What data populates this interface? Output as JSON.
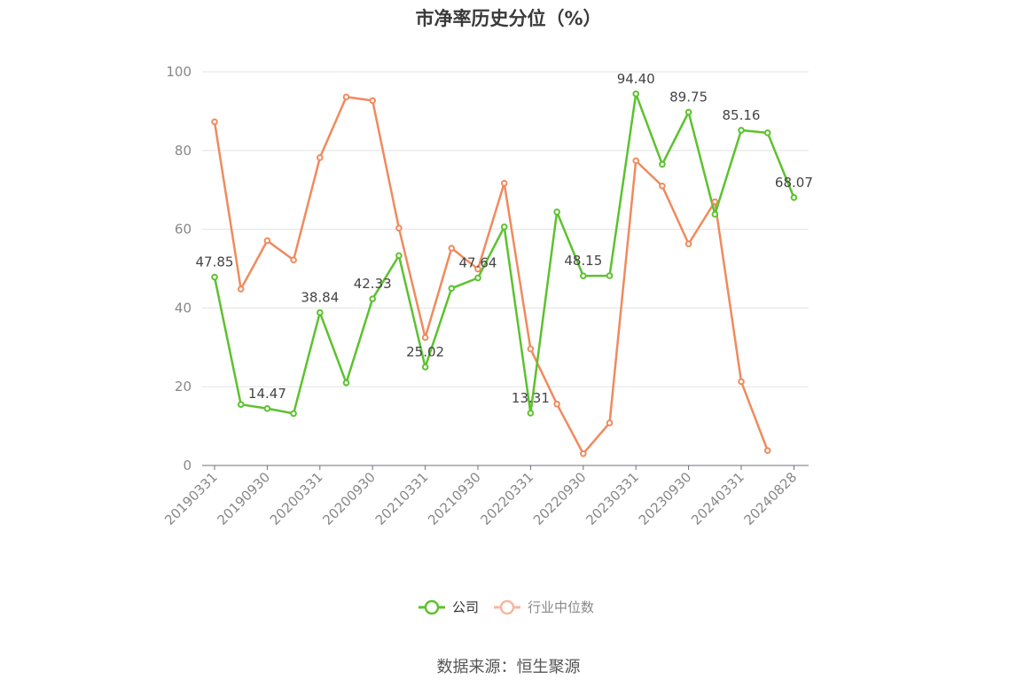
{
  "chart_data": {
    "type": "line",
    "title": "市净率历史分位（%）",
    "ylim": [
      0,
      100
    ],
    "yticks": [
      0,
      20,
      40,
      60,
      80,
      100
    ],
    "x": [
      "20190331",
      "20190630",
      "20190930",
      "20191231",
      "20200331",
      "20200630",
      "20200930",
      "20201231",
      "20210331",
      "20210630",
      "20210930",
      "20211231",
      "20220331",
      "20220630",
      "20220930",
      "20221231",
      "20230331",
      "20230630",
      "20230930",
      "20231231",
      "20240331",
      "20240630",
      "20240828"
    ],
    "x_tick_labels": [
      "20190331",
      "20190930",
      "20200331",
      "20200930",
      "20210331",
      "20210930",
      "20220331",
      "20220930",
      "20230331",
      "20230930",
      "20240331",
      "20240828"
    ],
    "grid": true,
    "legend_position": "bottom",
    "series": [
      {
        "name": "公司",
        "color": "#5cc22e",
        "values": [
          47.85,
          15.5,
          14.47,
          13.2,
          38.84,
          21.0,
          42.33,
          53.3,
          25.02,
          45.0,
          47.64,
          60.6,
          13.31,
          64.4,
          48.15,
          48.2,
          94.4,
          76.5,
          89.75,
          63.8,
          85.16,
          84.5,
          68.07
        ],
        "labels": [
          "47.85",
          "",
          "14.47",
          "",
          "38.84",
          "",
          "42.33",
          "",
          "25.02",
          "",
          "47.64",
          "",
          "13.31",
          "",
          "48.15",
          "",
          "94.40",
          "",
          "89.75",
          "",
          "85.16",
          "",
          "68.07"
        ]
      },
      {
        "name": "行业中位数",
        "color": "#f08a5d",
        "values": [
          87.3,
          44.8,
          57.1,
          52.2,
          78.2,
          93.6,
          92.7,
          60.3,
          32.5,
          55.2,
          49.9,
          71.7,
          29.6,
          15.6,
          3.0,
          10.8,
          77.4,
          71.0,
          56.3,
          67.0,
          21.3,
          3.8,
          null
        ],
        "labels": []
      }
    ]
  },
  "source_note": "数据来源：恒生聚源"
}
